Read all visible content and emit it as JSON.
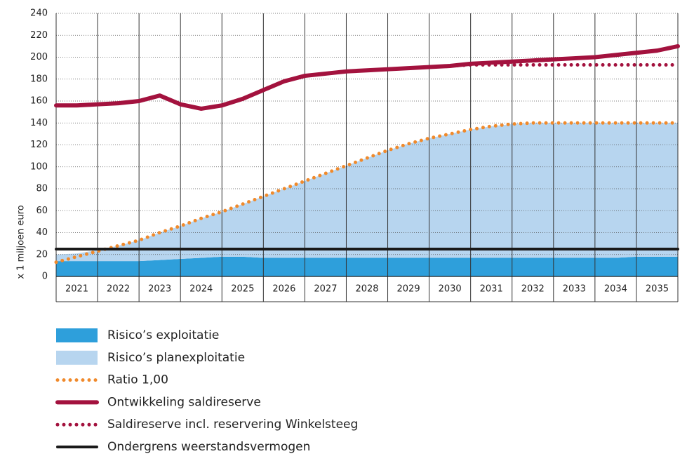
{
  "chart_data": {
    "type": "line",
    "y_label": "x 1 miljoen euro",
    "x": [
      2020.5,
      2021,
      2021.5,
      2022,
      2022.5,
      2023,
      2023.5,
      2024,
      2024.5,
      2025,
      2025.5,
      2026,
      2026.5,
      2027,
      2027.5,
      2028,
      2028.5,
      2029,
      2029.5,
      2030,
      2030.5,
      2031,
      2031.5,
      2032,
      2032.5,
      2033,
      2033.5,
      2034,
      2034.5,
      2035,
      2035.5
    ],
    "xlim": [
      2020.5,
      2035.5
    ],
    "xticks": [
      2021,
      2022,
      2023,
      2024,
      2025,
      2026,
      2027,
      2028,
      2029,
      2030,
      2031,
      2032,
      2033,
      2034,
      2035
    ],
    "ylim": [
      0,
      240
    ],
    "yticks": [
      0,
      20,
      40,
      60,
      80,
      100,
      120,
      140,
      160,
      180,
      200,
      220,
      240
    ],
    "grid": true,
    "series": [
      {
        "name": "Risico’s exploitatie",
        "color": "#2e9fdb",
        "style": "area",
        "stacked": true,
        "values": [
          14,
          14,
          14,
          14,
          14,
          15,
          16,
          17,
          18,
          18,
          17,
          17,
          17,
          17,
          17,
          17,
          17,
          17,
          17,
          17,
          17,
          17,
          17,
          17,
          17,
          17,
          17,
          17,
          18,
          18,
          18
        ]
      },
      {
        "name": "Risico’s planexploitatie",
        "color": "#b7d5ef",
        "style": "area",
        "stacked": true,
        "values": [
          6,
          7,
          10,
          14,
          19,
          25,
          30,
          36,
          41,
          48,
          56,
          63,
          70,
          77,
          84,
          91,
          98,
          104,
          109,
          113,
          117,
          120,
          122,
          123,
          123,
          123,
          123,
          123,
          122,
          122,
          122
        ]
      },
      {
        "name": "Ratio 1,00",
        "color": "#f08a2c",
        "style": "dotted",
        "values": [
          13,
          18,
          23,
          28,
          33,
          40,
          46,
          53,
          59,
          66,
          73,
          80,
          87,
          94,
          101,
          108,
          115,
          121,
          126,
          130,
          134,
          137,
          139,
          140,
          140,
          140,
          140,
          140,
          140,
          140,
          140
        ]
      },
      {
        "name": "Ontwikkeling saldireserve",
        "color": "#a3123e",
        "style": "solid",
        "values": [
          156,
          156,
          157,
          158,
          160,
          165,
          157,
          153,
          156,
          162,
          170,
          178,
          183,
          185,
          187,
          188,
          189,
          190,
          191,
          192,
          194,
          195,
          196,
          197,
          198,
          199,
          200,
          202,
          204,
          206,
          210
        ]
      },
      {
        "name": "Saldireserve incl. reservering Winkelsteeg",
        "color": "#a3123e",
        "style": "dotted",
        "values": [
          156,
          156,
          157,
          158,
          160,
          165,
          157,
          153,
          156,
          162,
          170,
          178,
          183,
          185,
          187,
          188,
          189,
          190,
          191,
          192,
          193,
          193,
          193,
          193,
          193,
          193,
          193,
          193,
          193,
          193,
          193
        ]
      },
      {
        "name": "Ondergrens weerstandsvermogen",
        "color": "#1a1a1a",
        "style": "solid",
        "values": [
          25,
          25,
          25,
          25,
          25,
          25,
          25,
          25,
          25,
          25,
          25,
          25,
          25,
          25,
          25,
          25,
          25,
          25,
          25,
          25,
          25,
          25,
          25,
          25,
          25,
          25,
          25,
          25,
          25,
          25,
          25
        ]
      }
    ]
  }
}
